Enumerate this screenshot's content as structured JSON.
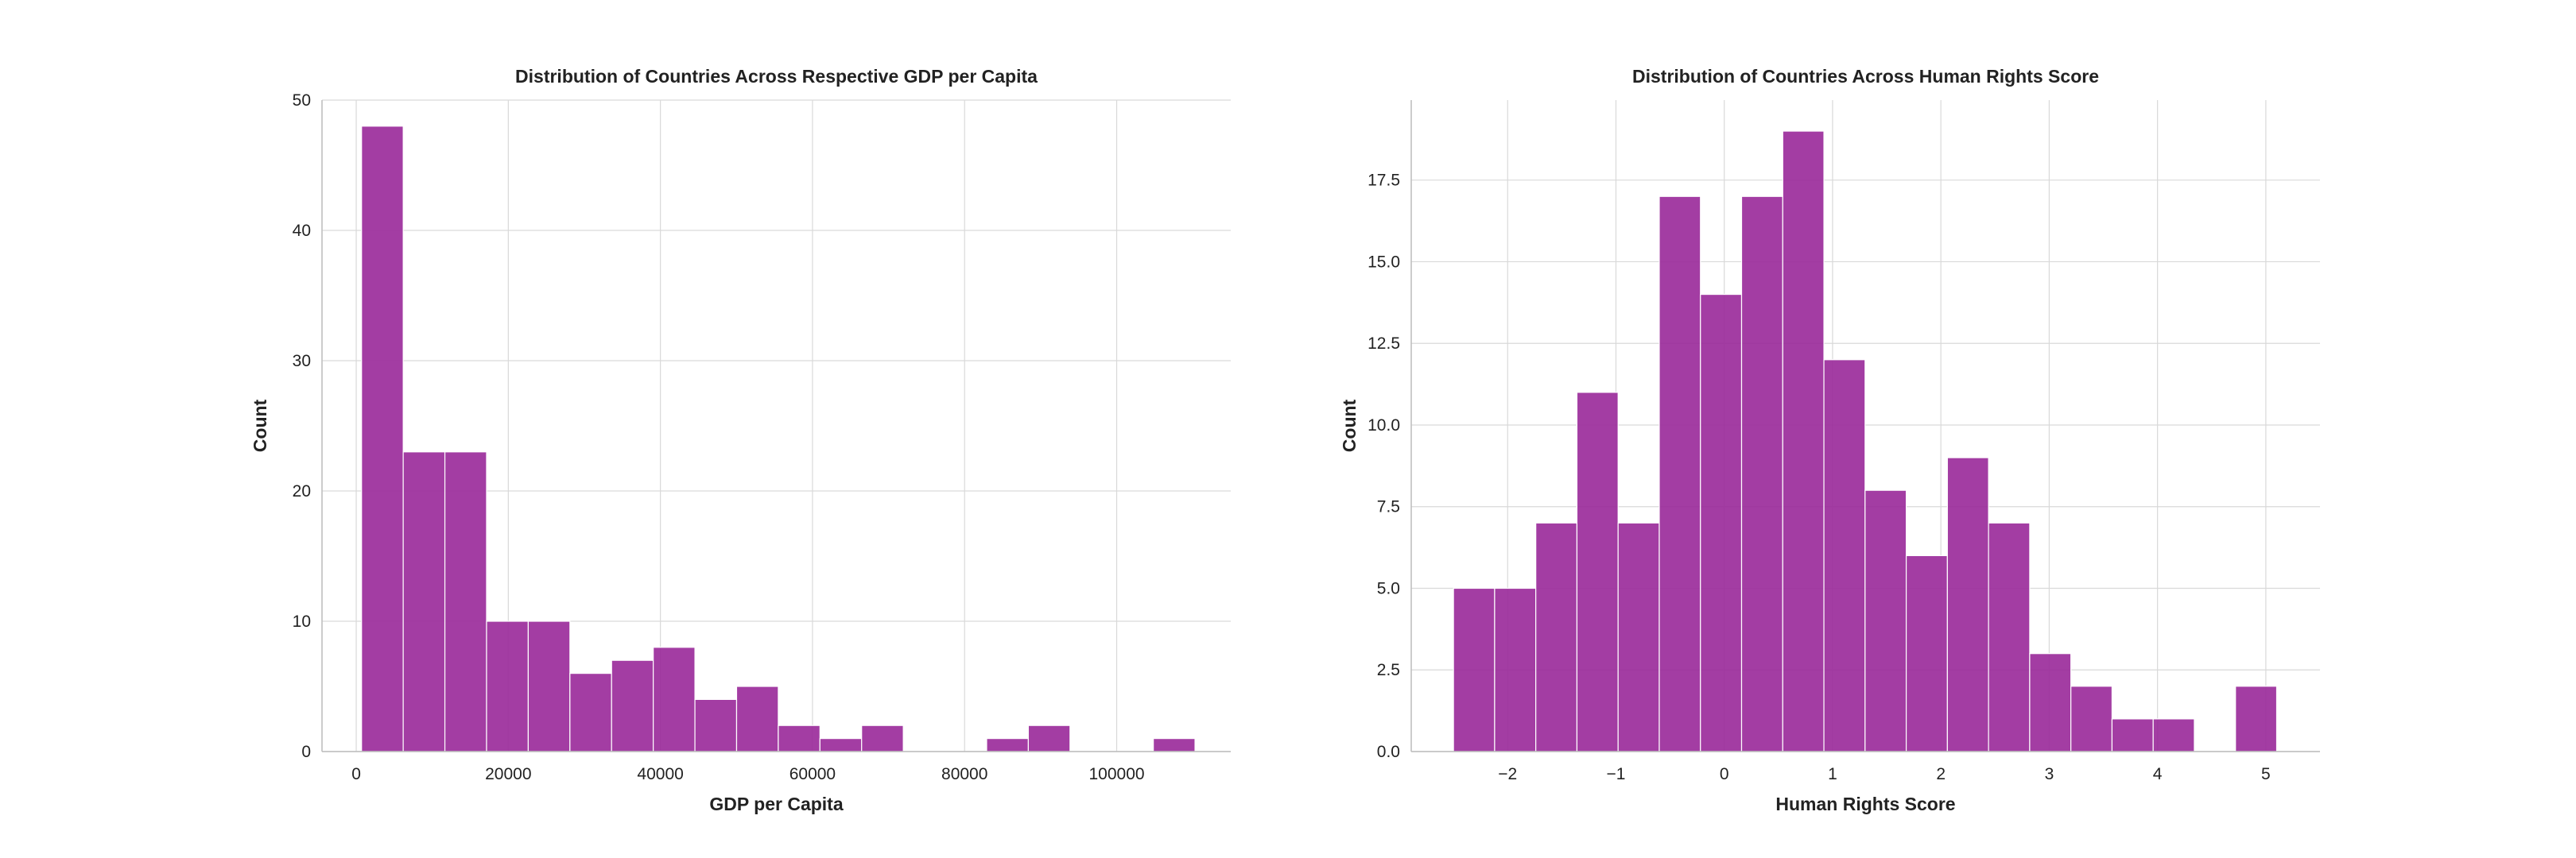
{
  "chart_data": [
    {
      "type": "bar",
      "title": "Distribution of Countries Across Respective GDP per Capita",
      "xlabel": "GDP per Capita",
      "ylabel": "Count",
      "xlim": [
        -4500,
        115000
      ],
      "ylim": [
        0,
        50
      ],
      "xticks": [
        0,
        20000,
        40000,
        60000,
        80000,
        100000
      ],
      "xtick_labels": [
        "0",
        "20000",
        "40000",
        "60000",
        "80000",
        "100000"
      ],
      "yticks": [
        0,
        10,
        20,
        30,
        40,
        50
      ],
      "ytick_labels": [
        "0",
        "10",
        "20",
        "30",
        "40",
        "50"
      ],
      "grid": true,
      "bar_color": "#9b2c9b",
      "bin_start": 700,
      "bin_width": 5480,
      "values": [
        48,
        23,
        23,
        10,
        10,
        6,
        7,
        8,
        4,
        5,
        2,
        1,
        2,
        0,
        0,
        1,
        2,
        0,
        0,
        1
      ]
    },
    {
      "type": "bar",
      "title": "Distribution of Countries Across Human Rights Score",
      "xlabel": "Human Rights Score",
      "ylabel": "Count",
      "xlim": [
        -2.89,
        5.5
      ],
      "ylim": [
        0,
        19.95
      ],
      "xticks": [
        -2,
        -1,
        0,
        1,
        2,
        3,
        4,
        5
      ],
      "xtick_labels": [
        "−2",
        "−1",
        "0",
        "1",
        "2",
        "3",
        "4",
        "5"
      ],
      "yticks": [
        0,
        2.5,
        5,
        7.5,
        10,
        12.5,
        15,
        17.5
      ],
      "ytick_labels": [
        "0.0",
        "2.5",
        "5.0",
        "7.5",
        "10.0",
        "12.5",
        "15.0",
        "17.5"
      ],
      "grid": true,
      "bar_color": "#9b2c9b",
      "bin_start": -2.5,
      "bin_width": 0.38,
      "values": [
        5,
        5,
        7,
        11,
        7,
        17,
        14,
        17,
        19,
        12,
        8,
        6,
        9,
        7,
        3,
        2,
        1,
        1,
        0,
        2
      ]
    }
  ]
}
